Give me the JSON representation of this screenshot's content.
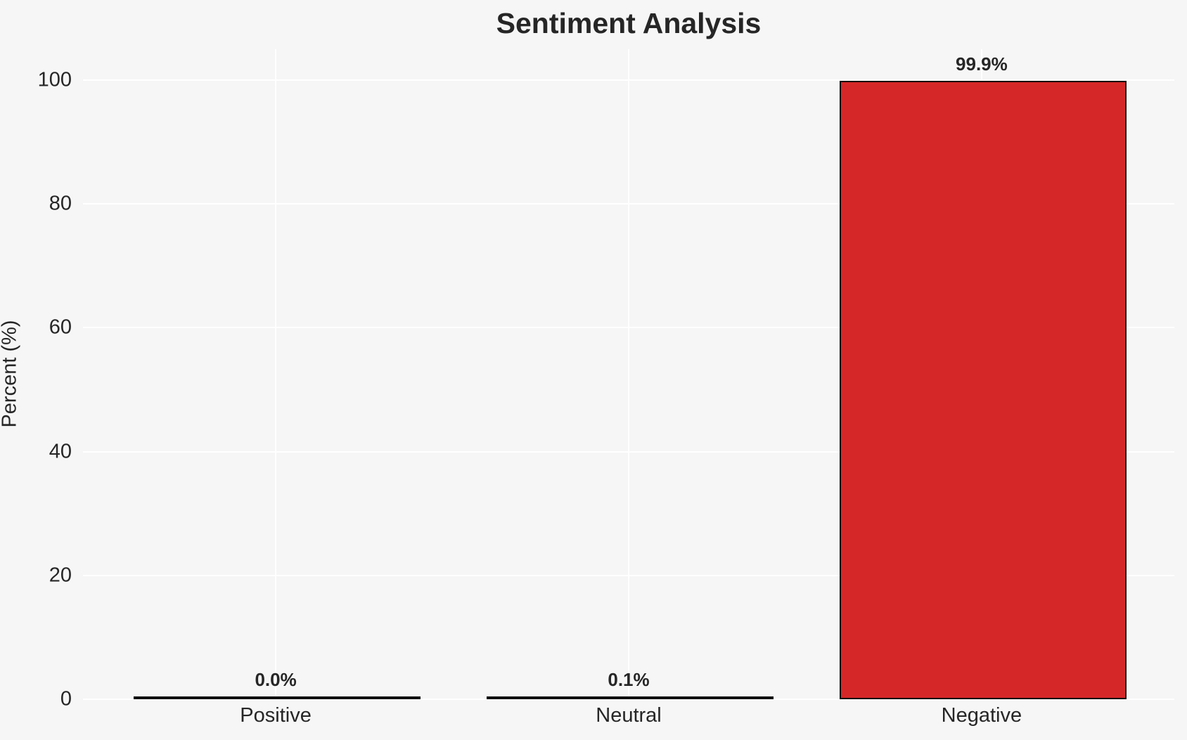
{
  "chart_data": {
    "type": "bar",
    "title": "Sentiment Analysis",
    "xlabel": "",
    "ylabel": "Percent (%)",
    "categories": [
      "Positive",
      "Neutral",
      "Negative"
    ],
    "values": [
      0.0,
      0.1,
      99.9
    ],
    "value_labels": [
      "0.0%",
      "0.1%",
      "99.9%"
    ],
    "yticks": [
      0,
      20,
      40,
      60,
      80,
      100
    ],
    "ylim": [
      0,
      105
    ],
    "grid": "on",
    "legend": "none",
    "colors": {
      "bar_fill": "#d62728",
      "bar_edge": "#0d0d0d",
      "background": "#f6f6f6",
      "gridline": "#ffffff",
      "text": "#262626"
    }
  }
}
